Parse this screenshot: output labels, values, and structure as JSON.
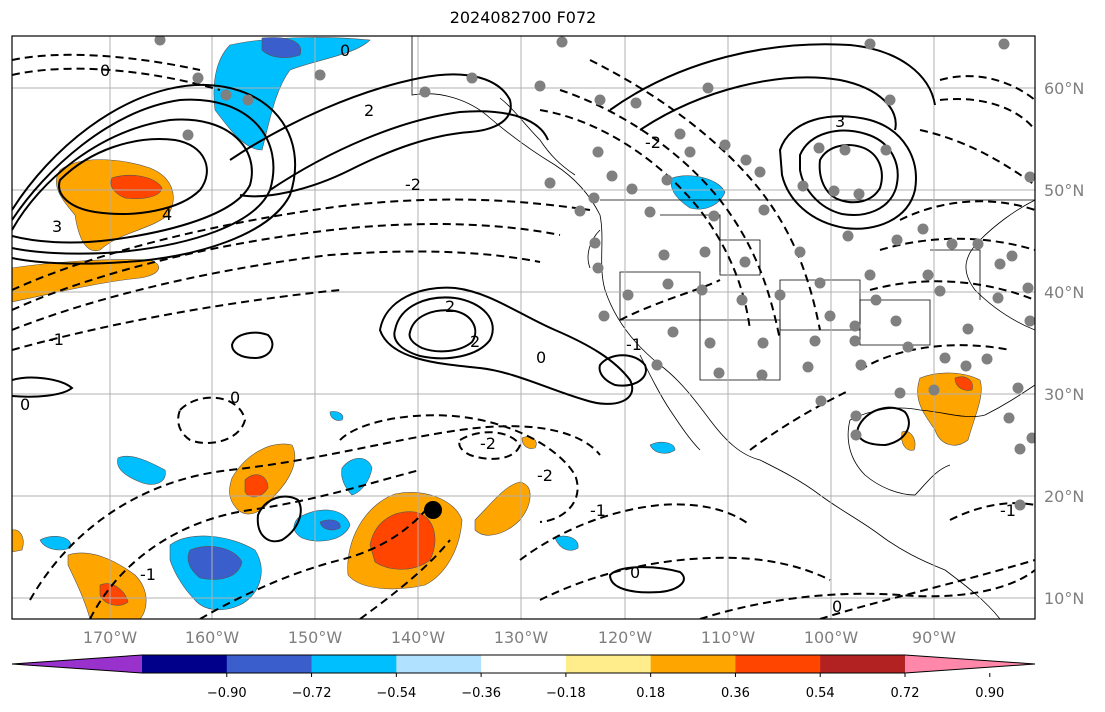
{
  "title": "2024082700 F072",
  "lon_labels": [
    "170°W",
    "160°W",
    "150°W",
    "140°W",
    "130°W",
    "120°W",
    "110°W",
    "100°W",
    "90°W"
  ],
  "lat_labels": [
    "60°N",
    "50°N",
    "40°N",
    "30°N",
    "20°N",
    "10°N"
  ],
  "contour_labels": [
    "0",
    "0",
    "2",
    "2",
    "3",
    "4",
    "-2",
    "-1",
    "0",
    "2",
    "-2",
    "-2",
    "-1",
    "-1",
    "0",
    "0",
    "0",
    "3",
    "-2",
    "0",
    "-1",
    "-1"
  ],
  "colorbar": {
    "ticks": [
      "−0.90",
      "−0.72",
      "−0.54",
      "−0.36",
      "−0.18",
      "0.18",
      "0.36",
      "0.54",
      "0.72",
      "0.90"
    ],
    "colors": [
      "#9932cc",
      "#00008b",
      "#3a5fcd",
      "#00bfff",
      "#b0e2ff",
      "#ffffff",
      "#ffec8b",
      "#ffa500",
      "#ff4500",
      "#b22222",
      "#ff88aa"
    ]
  }
}
